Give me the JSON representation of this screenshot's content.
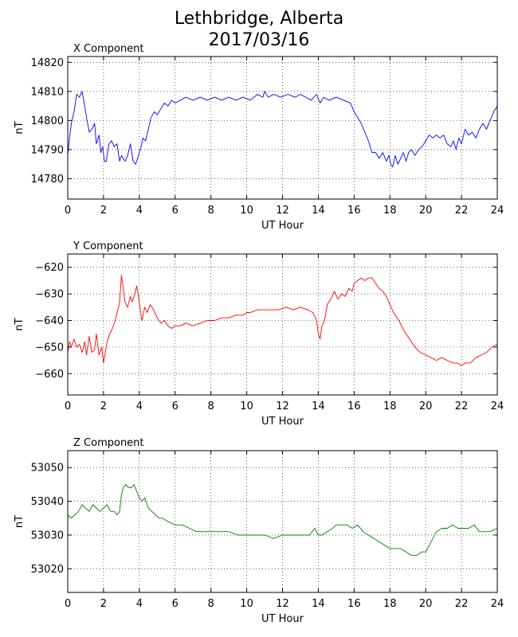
{
  "title": {
    "line1": "Lethbridge, Alberta",
    "line2": "2017/03/16"
  },
  "chart_data": [
    {
      "type": "line",
      "title": "X Component",
      "xlabel": "UT Hour",
      "ylabel": "nT",
      "xlim": [
        0,
        24
      ],
      "ylim": [
        14773,
        14822
      ],
      "xticks": [
        0,
        2,
        4,
        6,
        8,
        10,
        12,
        14,
        16,
        18,
        20,
        22,
        24
      ],
      "yticks": [
        14780,
        14790,
        14800,
        14810,
        14820
      ],
      "grid": true,
      "color": "#0000ff",
      "series": [
        {
          "x": [
            0,
            0.1,
            0.2,
            0.35,
            0.5,
            0.65,
            0.8,
            0.95,
            1.05,
            1.2,
            1.35,
            1.5,
            1.6,
            1.75,
            1.85,
            1.95,
            2.05,
            2.15,
            2.3,
            2.45,
            2.6,
            2.75,
            2.9,
            3.0,
            3.1,
            3.2,
            3.35,
            3.5,
            3.65,
            3.8,
            3.95,
            4.1,
            4.2,
            4.35,
            4.5,
            4.65,
            4.85,
            5.0,
            5.2,
            5.4,
            5.6,
            5.8,
            6.0,
            6.3,
            6.6,
            7.0,
            7.4,
            7.8,
            8.2,
            8.6,
            9.0,
            9.4,
            9.8,
            10.2,
            10.6,
            10.9,
            11.0,
            11.2,
            11.5,
            11.9,
            12.3,
            12.7,
            13.0,
            13.3,
            13.6,
            13.9,
            14.1,
            14.3,
            14.6,
            15.0,
            15.4,
            15.8,
            16.0,
            16.2,
            16.4,
            16.6,
            16.8,
            17.0,
            17.2,
            17.4,
            17.6,
            17.8,
            17.95,
            18.05,
            18.15,
            18.3,
            18.45,
            18.6,
            18.75,
            18.9,
            19.05,
            19.2,
            19.4,
            19.6,
            19.8,
            20.0,
            20.2,
            20.4,
            20.6,
            20.8,
            21.0,
            21.2,
            21.4,
            21.55,
            21.7,
            21.85,
            22.0,
            22.2,
            22.4,
            22.6,
            22.8,
            23.0,
            23.2,
            23.4,
            23.6,
            23.8,
            24.0
          ],
          "y": [
            14788,
            14794,
            14799,
            14803,
            14809,
            14808,
            14810,
            14805,
            14801,
            14796,
            14797,
            14799,
            14792,
            14795,
            14789,
            14791,
            14786,
            14786,
            14792,
            14793,
            14791,
            14792,
            14786,
            14788,
            14787,
            14786,
            14788,
            14792,
            14786,
            14785,
            14788,
            14791,
            14794,
            14793,
            14797,
            14801,
            14803,
            14802,
            14804,
            14806,
            14805,
            14807,
            14806,
            14807,
            14808,
            14807,
            14808,
            14807,
            14808,
            14807,
            14808,
            14807,
            14808,
            14807,
            14809,
            14808,
            14810,
            14808,
            14809,
            14808,
            14809,
            14808,
            14809,
            14808,
            14807,
            14809,
            14806,
            14808,
            14807,
            14808,
            14807,
            14806,
            14803,
            14801,
            14799,
            14796,
            14793,
            14789,
            14789,
            14787,
            14789,
            14786,
            14788,
            14785,
            14784,
            14788,
            14785,
            14787,
            14789,
            14786,
            14789,
            14790,
            14788,
            14790,
            14791,
            14793,
            14795,
            14794,
            14795,
            14794,
            14795,
            14792,
            14791,
            14793,
            14790,
            14794,
            14792,
            14797,
            14795,
            14796,
            14794,
            14797,
            14799,
            14797,
            14800,
            14803,
            14805
          ]
        }
      ]
    },
    {
      "type": "line",
      "title": "Y Component",
      "xlabel": "UT Hour",
      "ylabel": "nT",
      "xlim": [
        0,
        24
      ],
      "ylim": [
        -668,
        -615
      ],
      "xticks": [
        0,
        2,
        4,
        6,
        8,
        10,
        12,
        14,
        16,
        18,
        20,
        22,
        24
      ],
      "yticks": [
        -660,
        -650,
        -640,
        -630,
        -620
      ],
      "grid": true,
      "color": "#ff0000",
      "series": [
        {
          "x": [
            0,
            0.1,
            0.2,
            0.35,
            0.5,
            0.65,
            0.8,
            0.95,
            1.05,
            1.2,
            1.35,
            1.5,
            1.6,
            1.75,
            1.9,
            2.0,
            2.1,
            2.2,
            2.35,
            2.5,
            2.65,
            2.8,
            2.9,
            3.0,
            3.1,
            3.2,
            3.35,
            3.5,
            3.6,
            3.75,
            3.85,
            3.95,
            4.05,
            4.15,
            4.3,
            4.45,
            4.6,
            4.8,
            5.0,
            5.2,
            5.4,
            5.6,
            5.8,
            6.0,
            6.3,
            6.6,
            7.0,
            7.4,
            7.8,
            8.2,
            8.6,
            9.0,
            9.4,
            9.8,
            10.0,
            10.2,
            10.6,
            11.0,
            11.4,
            11.8,
            12.2,
            12.6,
            13.0,
            13.4,
            13.7,
            13.9,
            14.0,
            14.1,
            14.2,
            14.35,
            14.5,
            14.7,
            14.9,
            15.1,
            15.3,
            15.5,
            15.7,
            15.9,
            16.0,
            16.2,
            16.4,
            16.6,
            16.8,
            17.0,
            17.2,
            17.4,
            17.6,
            17.8,
            18.0,
            18.2,
            18.5,
            18.8,
            19.1,
            19.4,
            19.7,
            20.0,
            20.3,
            20.6,
            20.9,
            21.2,
            21.5,
            21.8,
            22.0,
            22.2,
            22.5,
            22.8,
            23.1,
            23.4,
            23.7,
            24.0
          ],
          "y": [
            -652,
            -648,
            -650,
            -647,
            -650,
            -649,
            -652,
            -648,
            -653,
            -646,
            -652,
            -651,
            -645,
            -653,
            -650,
            -656,
            -652,
            -648,
            -645,
            -643,
            -640,
            -636,
            -633,
            -623,
            -628,
            -633,
            -635,
            -631,
            -633,
            -630,
            -627,
            -631,
            -636,
            -640,
            -635,
            -637,
            -634,
            -636,
            -639,
            -641,
            -640,
            -642,
            -643,
            -642,
            -642,
            -641,
            -642,
            -641,
            -640,
            -640,
            -639,
            -639,
            -638,
            -638,
            -637,
            -637,
            -636,
            -636,
            -636,
            -636,
            -635,
            -636,
            -635,
            -636,
            -637,
            -640,
            -645,
            -647,
            -642,
            -640,
            -634,
            -632,
            -629,
            -632,
            -630,
            -631,
            -628,
            -629,
            -626,
            -625,
            -624,
            -625,
            -624,
            -624,
            -626,
            -628,
            -629,
            -631,
            -634,
            -637,
            -640,
            -644,
            -647,
            -650,
            -652,
            -653,
            -654,
            -655,
            -654,
            -655,
            -656,
            -656,
            -657,
            -656,
            -656,
            -654,
            -653,
            -652,
            -650,
            -649
          ]
        }
      ]
    },
    {
      "type": "line",
      "title": "Z Component",
      "xlabel": "UT Hour",
      "ylabel": "nT",
      "xlim": [
        0,
        24
      ],
      "ylim": [
        53013,
        53055
      ],
      "xticks": [
        0,
        2,
        4,
        6,
        8,
        10,
        12,
        14,
        16,
        18,
        20,
        22,
        24
      ],
      "yticks": [
        53020,
        53030,
        53040,
        53050
      ],
      "grid": true,
      "color": "#008000",
      "series": [
        {
          "x": [
            0,
            0.2,
            0.4,
            0.6,
            0.8,
            1.0,
            1.2,
            1.4,
            1.6,
            1.8,
            2.0,
            2.2,
            2.4,
            2.6,
            2.75,
            2.9,
            3.0,
            3.1,
            3.25,
            3.4,
            3.55,
            3.7,
            3.85,
            4.0,
            4.15,
            4.3,
            4.5,
            4.7,
            4.9,
            5.1,
            5.3,
            5.6,
            6.0,
            6.4,
            6.8,
            7.2,
            7.6,
            8.0,
            8.5,
            9.0,
            9.5,
            10.0,
            10.5,
            11.0,
            11.5,
            12.0,
            12.5,
            13.0,
            13.5,
            13.8,
            14.0,
            14.2,
            14.5,
            14.8,
            15.0,
            15.3,
            15.6,
            15.9,
            16.2,
            16.5,
            16.8,
            17.1,
            17.4,
            17.7,
            18.0,
            18.3,
            18.6,
            18.9,
            19.2,
            19.5,
            19.8,
            20.0,
            20.2,
            20.4,
            20.6,
            20.9,
            21.2,
            21.5,
            21.8,
            22.1,
            22.4,
            22.7,
            23.0,
            23.3,
            23.6,
            24.0
          ],
          "y": [
            53036,
            53035,
            53036,
            53037,
            53039,
            53038,
            53037,
            53039,
            53038,
            53037,
            53038,
            53039,
            53037,
            53037,
            53036,
            53037,
            53042,
            53044,
            53045,
            53044,
            53044,
            53045,
            53043,
            53041,
            53040,
            53041,
            53038,
            53037,
            53036,
            53035,
            53035,
            53034,
            53033,
            53033,
            53032,
            53031,
            53031,
            53031,
            53031,
            53031,
            53030,
            53030,
            53030,
            53030,
            53029,
            53030,
            53030,
            53030,
            53030,
            53032,
            53030,
            53030,
            53031,
            53032,
            53033,
            53033,
            53033,
            53032,
            53033,
            53031,
            53030,
            53029,
            53028,
            53027,
            53026,
            53026,
            53026,
            53025,
            53024,
            53024,
            53025,
            53025,
            53027,
            53029,
            53031,
            53032,
            53032,
            53033,
            53032,
            53032,
            53032,
            53033,
            53031,
            53031,
            53031,
            53032
          ]
        }
      ]
    }
  ]
}
